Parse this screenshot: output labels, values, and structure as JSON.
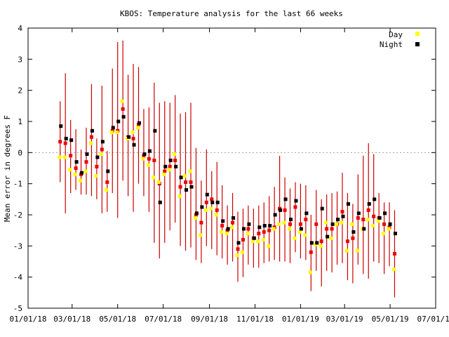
{
  "chart_data": {
    "type": "scatter",
    "title": "KBOS: Temperature analysis for the last 66 weeks",
    "ylabel": "Mean error in degrees F",
    "xlabel": "",
    "ylim": [
      -5,
      4
    ],
    "y_ticks": [
      4,
      3,
      2,
      1,
      0,
      -1,
      -2,
      -3,
      -4,
      -5
    ],
    "x_range": [
      "2018-01-01",
      "2019-07-01"
    ],
    "x_ticks": [
      {
        "date": "2018-01-01",
        "label": "01/01/18"
      },
      {
        "date": "2018-03-01",
        "label": "03/01/18"
      },
      {
        "date": "2018-05-01",
        "label": "05/01/18"
      },
      {
        "date": "2018-07-01",
        "label": "07/01/18"
      },
      {
        "date": "2018-09-01",
        "label": "09/01/18"
      },
      {
        "date": "2018-11-01",
        "label": "11/01/18"
      },
      {
        "date": "2019-01-01",
        "label": "01/01/19"
      },
      {
        "date": "2019-03-01",
        "label": "03/01/19"
      },
      {
        "date": "2019-05-01",
        "label": "05/01/19"
      },
      {
        "date": "2019-07-01",
        "label": "07/01/19"
      }
    ],
    "zero_line": true,
    "legend_position": "top-right",
    "colors": {
      "day": "#ffff00",
      "night": "#000000",
      "mean": "#ee0000",
      "errorbar": "#cc0000"
    },
    "series": [
      {
        "name": "Day",
        "color": "#ffff00",
        "values": [
          -0.15,
          -0.15,
          -0.55,
          -0.7,
          -0.9,
          -0.6,
          0.3,
          -0.75,
          -0.05,
          -1.2,
          0.65,
          0.65,
          1.65,
          0.45,
          0.65,
          0.8,
          -0.2,
          -0.4,
          -0.8,
          -0.95,
          -0.7,
          -0.55,
          -0.05,
          -1.4,
          -0.75,
          -0.6,
          -2.1,
          -2.65,
          -1.85,
          -1.8,
          -2.0,
          -2.55,
          -2.6,
          -2.4,
          -3.3,
          -3.2,
          -2.6,
          -2.85,
          -2.85,
          -2.8,
          -3.0,
          -2.45,
          -2.3,
          -2.25,
          -2.45,
          -2.75,
          -2.55,
          -2.65,
          -3.85,
          -2.95,
          -3.0,
          -2.25,
          -2.75,
          -2.3,
          -2.25,
          -3.15,
          -2.3,
          -3.15,
          -2.45,
          -2.15,
          -2.35,
          -2.2,
          -2.6,
          -2.45,
          -3.75
        ]
      },
      {
        "name": "Night",
        "color": "#000000",
        "values": [
          0.85,
          0.45,
          0.4,
          -0.3,
          -0.65,
          -0.05,
          0.7,
          -0.15,
          0.35,
          -0.6,
          0.8,
          1.0,
          1.15,
          0.5,
          0.25,
          0.95,
          -0.05,
          0.05,
          0.7,
          -1.6,
          -0.45,
          -0.25,
          -0.45,
          -0.8,
          -1.2,
          -1.1,
          -1.95,
          -1.75,
          -1.35,
          -1.6,
          -1.6,
          -2.2,
          -2.45,
          -2.1,
          -2.9,
          -2.45,
          -2.3,
          -2.75,
          -2.4,
          -2.35,
          -2.35,
          -2.0,
          -1.85,
          -1.5,
          -2.15,
          -1.55,
          -2.45,
          -1.95,
          -2.9,
          -2.9,
          -1.8,
          -2.7,
          -2.3,
          -2.15,
          -2.05,
          -1.65,
          -2.55,
          -1.95,
          -2.45,
          -1.65,
          -1.5,
          -2.1,
          -1.95,
          -2.3,
          -2.6
        ]
      }
    ],
    "mean": [
      0.35,
      0.3,
      -0.1,
      -0.5,
      -0.7,
      -0.3,
      0.5,
      -0.45,
      0.1,
      -0.95,
      0.7,
      0.7,
      1.4,
      0.5,
      0.45,
      0.9,
      -0.1,
      -0.2,
      -0.25,
      -1.0,
      -0.6,
      -0.45,
      -0.25,
      -1.1,
      -0.95,
      -0.95,
      -2.0,
      -2.25,
      -1.6,
      -1.5,
      -1.85,
      -2.35,
      -2.5,
      -2.25,
      -3.1,
      -2.8,
      -2.45,
      -2.75,
      -2.6,
      -2.55,
      -2.5,
      -2.4,
      -1.8,
      -1.85,
      -2.3,
      -1.75,
      -2.3,
      -2.15,
      -3.2,
      -2.3,
      -2.85,
      -2.45,
      -2.45,
      -2.3,
      -1.9,
      -2.85,
      -2.75,
      -2.1,
      -2.15,
      -1.85,
      -2.05,
      -2.1,
      -2.3,
      -2.4,
      -3.25
    ],
    "errorbars": [
      [
        -0.95,
        1.65
      ],
      [
        -1.95,
        2.55
      ],
      [
        -1.3,
        1.05
      ],
      [
        -1.2,
        0.75
      ],
      [
        -1.35,
        0.1
      ],
      [
        -1.35,
        0.8
      ],
      [
        -1.4,
        2.2
      ],
      [
        -1.5,
        0.45
      ],
      [
        -1.95,
        2.15
      ],
      [
        -1.9,
        0.05
      ],
      [
        -1.3,
        2.7
      ],
      [
        -2.1,
        3.55
      ],
      [
        -0.9,
        3.6
      ],
      [
        -1.4,
        2.5
      ],
      [
        -1.9,
        2.85
      ],
      [
        -1.0,
        2.75
      ],
      [
        -1.4,
        1.4
      ],
      [
        -1.9,
        1.45
      ],
      [
        -2.9,
        2.25
      ],
      [
        -3.4,
        1.6
      ],
      [
        -2.9,
        1.65
      ],
      [
        -2.5,
        1.6
      ],
      [
        -2.25,
        1.85
      ],
      [
        -3.0,
        1.25
      ],
      [
        -3.15,
        1.3
      ],
      [
        -3.05,
        1.6
      ],
      [
        -3.45,
        0.15
      ],
      [
        -3.55,
        -0.9
      ],
      [
        -3.0,
        0.1
      ],
      [
        -3.1,
        -0.6
      ],
      [
        -3.3,
        -0.3
      ],
      [
        -3.4,
        -1.05
      ],
      [
        -3.6,
        -1.7
      ],
      [
        -3.5,
        -1.3
      ],
      [
        -4.15,
        -1.9
      ],
      [
        -4.0,
        -1.8
      ],
      [
        -3.6,
        -1.7
      ],
      [
        -3.7,
        -1.8
      ],
      [
        -3.7,
        -1.7
      ],
      [
        -3.55,
        -1.6
      ],
      [
        -3.5,
        -1.4
      ],
      [
        -3.45,
        -1.1
      ],
      [
        -3.5,
        -0.1
      ],
      [
        -3.5,
        -0.8
      ],
      [
        -3.55,
        -1.15
      ],
      [
        -3.2,
        -0.95
      ],
      [
        -3.4,
        -1.0
      ],
      [
        -3.45,
        -1.05
      ],
      [
        -4.45,
        -2.0
      ],
      [
        -3.8,
        -1.2
      ],
      [
        -4.3,
        -1.5
      ],
      [
        -3.8,
        -1.35
      ],
      [
        -3.85,
        -1.3
      ],
      [
        -3.6,
        -1.25
      ],
      [
        -3.55,
        -0.65
      ],
      [
        -4.1,
        -1.3
      ],
      [
        -4.2,
        -1.65
      ],
      [
        -3.6,
        -0.7
      ],
      [
        -3.9,
        -0.1
      ],
      [
        -4.05,
        0.3
      ],
      [
        -3.5,
        -0.05
      ],
      [
        -3.55,
        -1.3
      ],
      [
        -3.9,
        -1.6
      ],
      [
        -3.65,
        -1.6
      ],
      [
        -4.65,
        -1.85
      ]
    ]
  }
}
